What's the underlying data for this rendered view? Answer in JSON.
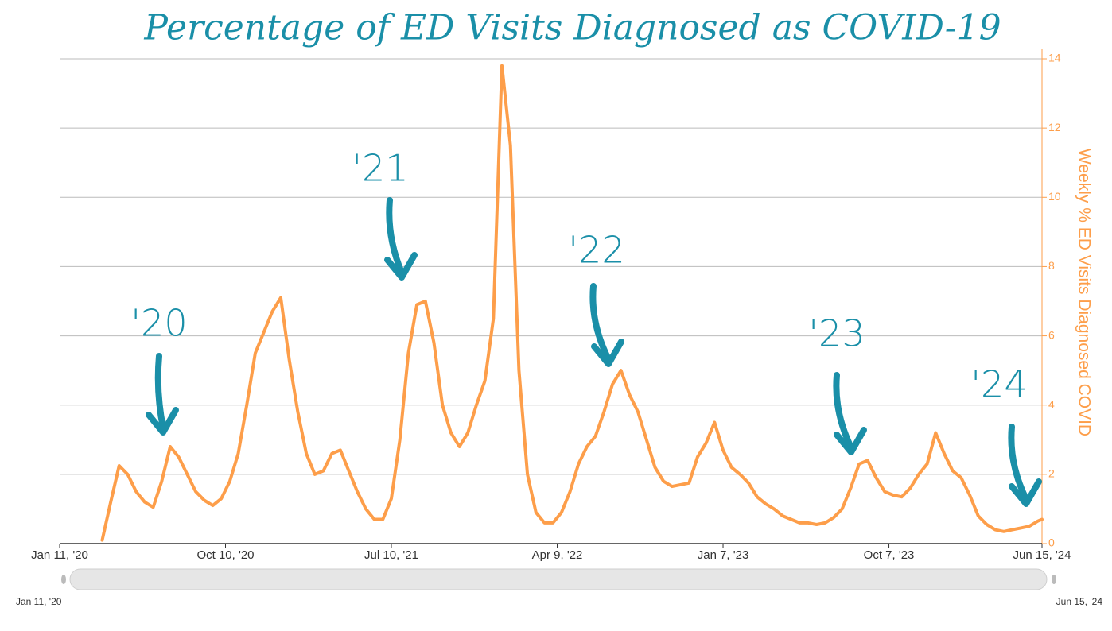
{
  "chart_data": {
    "type": "line",
    "title": "Percentage of ED Visits Diagnosed as COVID-19",
    "y2label": "Weekly % ED Visits Diagnosed COVID",
    "annotations": [
      "'20",
      "'21",
      "'22",
      "'23",
      "'24"
    ],
    "navigator": {
      "start": "Jan 11, '20",
      "end": "Jun 15, '24"
    },
    "xlim": [
      "2020-01-11",
      "2024-06-15"
    ],
    "xticks": [
      {
        "value": "2020-01-11",
        "label": "Jan 11, '20"
      },
      {
        "value": "2020-10-10",
        "label": "Oct 10, '20"
      },
      {
        "value": "2021-07-10",
        "label": "Jul 10, '21"
      },
      {
        "value": "2022-04-09",
        "label": "Apr 9, '22"
      },
      {
        "value": "2023-01-07",
        "label": "Jan 7, '23"
      },
      {
        "value": "2023-10-07",
        "label": "Oct 7, '23"
      },
      {
        "value": "2024-06-15",
        "label": "Jun 15, '24"
      }
    ],
    "y2lim": [
      0,
      14
    ],
    "y2ticks": [
      0,
      2,
      4,
      6,
      8,
      10,
      12,
      14
    ],
    "grid": true,
    "x": [
      "2020-03-21",
      "2020-04-04",
      "2020-04-18",
      "2020-05-02",
      "2020-05-16",
      "2020-05-30",
      "2020-06-13",
      "2020-06-27",
      "2020-07-11",
      "2020-07-25",
      "2020-08-08",
      "2020-08-22",
      "2020-09-05",
      "2020-09-19",
      "2020-10-03",
      "2020-10-17",
      "2020-10-31",
      "2020-11-14",
      "2020-11-28",
      "2020-12-12",
      "2020-12-26",
      "2021-01-09",
      "2021-01-23",
      "2021-02-06",
      "2021-02-20",
      "2021-03-06",
      "2021-03-20",
      "2021-04-03",
      "2021-04-17",
      "2021-05-01",
      "2021-05-15",
      "2021-05-29",
      "2021-06-12",
      "2021-06-26",
      "2021-07-10",
      "2021-07-24",
      "2021-08-07",
      "2021-08-21",
      "2021-09-04",
      "2021-09-18",
      "2021-10-02",
      "2021-10-16",
      "2021-10-30",
      "2021-11-13",
      "2021-11-27",
      "2021-12-11",
      "2021-12-25",
      "2022-01-08",
      "2022-01-22",
      "2022-02-05",
      "2022-02-19",
      "2022-03-05",
      "2022-03-19",
      "2022-04-02",
      "2022-04-16",
      "2022-04-30",
      "2022-05-14",
      "2022-05-28",
      "2022-06-11",
      "2022-06-25",
      "2022-07-09",
      "2022-07-23",
      "2022-08-06",
      "2022-08-20",
      "2022-09-03",
      "2022-09-17",
      "2022-10-01",
      "2022-10-15",
      "2022-10-29",
      "2022-11-12",
      "2022-11-26",
      "2022-12-10",
      "2022-12-24",
      "2023-01-07",
      "2023-01-21",
      "2023-02-04",
      "2023-02-18",
      "2023-03-04",
      "2023-03-18",
      "2023-04-01",
      "2023-04-15",
      "2023-04-29",
      "2023-05-13",
      "2023-05-27",
      "2023-06-10",
      "2023-06-24",
      "2023-07-08",
      "2023-07-22",
      "2023-08-05",
      "2023-08-19",
      "2023-09-02",
      "2023-09-16",
      "2023-09-30",
      "2023-10-14",
      "2023-10-28",
      "2023-11-11",
      "2023-11-25",
      "2023-12-09",
      "2023-12-23",
      "2024-01-06",
      "2024-01-20",
      "2024-02-03",
      "2024-02-17",
      "2024-03-02",
      "2024-03-16",
      "2024-03-30",
      "2024-04-13",
      "2024-04-27",
      "2024-05-11",
      "2024-05-25",
      "2024-06-08",
      "2024-06-15"
    ],
    "series": [
      {
        "name": "Weekly % ED Visits Diagnosed COVID",
        "color": "#fd9e4a",
        "axis": "y2",
        "values": [
          0.1,
          1.2,
          2.25,
          2.0,
          1.5,
          1.2,
          1.05,
          1.8,
          2.8,
          2.5,
          2.0,
          1.5,
          1.25,
          1.1,
          1.3,
          1.8,
          2.6,
          4.0,
          5.5,
          6.1,
          6.7,
          7.1,
          5.3,
          3.8,
          2.6,
          2.0,
          2.1,
          2.6,
          2.7,
          2.1,
          1.5,
          1.0,
          0.7,
          0.7,
          1.3,
          3.0,
          5.5,
          6.9,
          7.0,
          5.8,
          4.0,
          3.2,
          2.8,
          3.2,
          4.0,
          4.7,
          6.5,
          13.8,
          11.5,
          5.0,
          2.0,
          0.9,
          0.6,
          0.6,
          0.9,
          1.5,
          2.3,
          2.8,
          3.1,
          3.8,
          4.6,
          5.0,
          4.3,
          3.8,
          3.0,
          2.2,
          1.8,
          1.65,
          1.7,
          1.75,
          2.5,
          2.9,
          3.5,
          2.7,
          2.2,
          2.0,
          1.75,
          1.35,
          1.15,
          1.0,
          0.8,
          0.7,
          0.6,
          0.6,
          0.55,
          0.6,
          0.75,
          1.0,
          1.6,
          2.3,
          2.4,
          1.9,
          1.5,
          1.4,
          1.35,
          1.6,
          2.0,
          2.3,
          3.2,
          2.6,
          2.1,
          1.9,
          1.4,
          0.8,
          0.55,
          0.4,
          0.35,
          0.4,
          0.45,
          0.5,
          0.65,
          0.7
        ]
      }
    ]
  }
}
